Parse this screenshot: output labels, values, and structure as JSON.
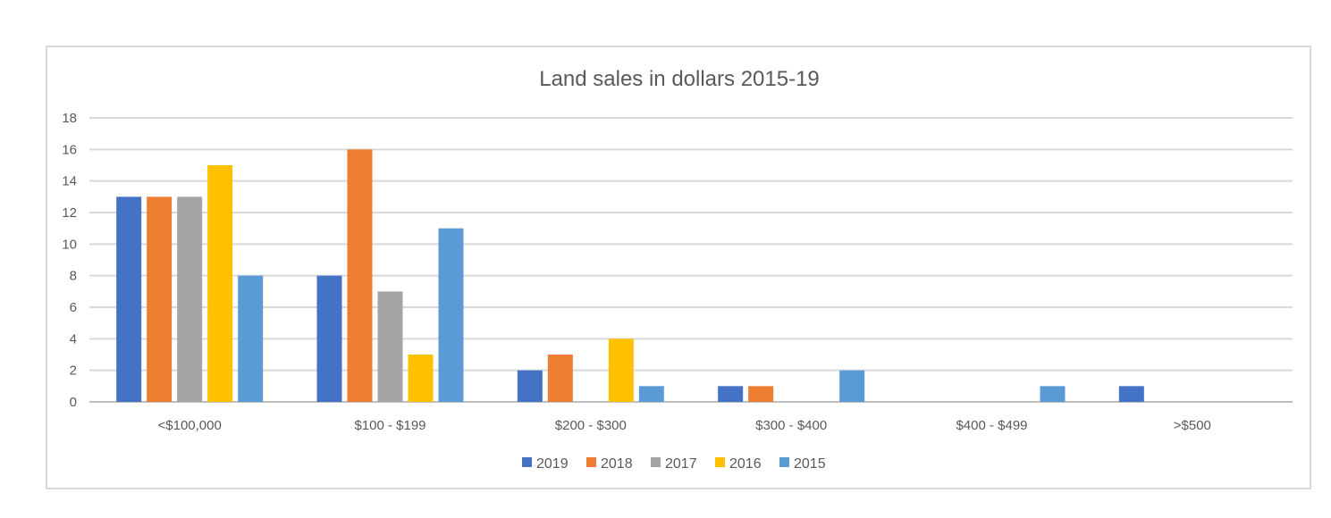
{
  "chart_data": {
    "type": "bar",
    "title": "Land sales in dollars 2015-19",
    "xlabel": "",
    "ylabel": "",
    "categories": [
      "<$100,000",
      "$100 - $199",
      "$200 - $300",
      "$300 - $400",
      "$400 - $499",
      ">$500"
    ],
    "series": [
      {
        "name": "2019",
        "color": "#4472C4",
        "values": [
          13,
          8,
          2,
          1,
          0,
          1
        ]
      },
      {
        "name": "2018",
        "color": "#ED7D31",
        "values": [
          13,
          16,
          3,
          1,
          0,
          0
        ]
      },
      {
        "name": "2017",
        "color": "#A5A5A5",
        "values": [
          13,
          7,
          0,
          0,
          0,
          0
        ]
      },
      {
        "name": "2016",
        "color": "#FFC000",
        "values": [
          15,
          3,
          4,
          0,
          0,
          0
        ]
      },
      {
        "name": "2015",
        "color": "#5B9BD5",
        "values": [
          8,
          11,
          1,
          2,
          1,
          0
        ]
      }
    ],
    "ylim": [
      0,
      18
    ],
    "yticks": [
      "0",
      "2",
      "4",
      "6",
      "8",
      "10",
      "12",
      "14",
      "16",
      "18"
    ],
    "grid": true,
    "legend": "bottom-center"
  }
}
